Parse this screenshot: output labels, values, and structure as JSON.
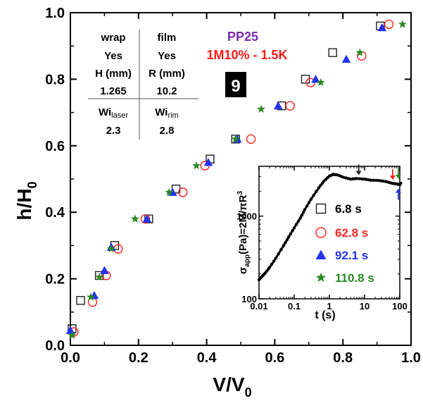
{
  "chart_data": {
    "type": "scatter",
    "xlabel": "V/V",
    "xlabel_sub": "0",
    "ylabel": "h/H",
    "ylabel_sub": "0",
    "xlim": [
      0,
      1.0
    ],
    "ylim": [
      0,
      1.0
    ],
    "xticks": [
      "0.0",
      "0.2",
      "0.4",
      "0.6",
      "0.8",
      "1.0"
    ],
    "yticks": [
      "0.0",
      "0.2",
      "0.4",
      "0.6",
      "0.8",
      "1.0"
    ],
    "series": [
      {
        "name": "6.8 s",
        "marker": "square",
        "color": "#222222",
        "x": [
          0.005,
          0.03,
          0.085,
          0.13,
          0.23,
          0.31,
          0.41,
          0.485,
          0.62,
          0.69,
          0.77,
          0.91
        ],
        "y": [
          0.05,
          0.135,
          0.21,
          0.3,
          0.38,
          0.47,
          0.56,
          0.62,
          0.72,
          0.8,
          0.88,
          0.96
        ]
      },
      {
        "name": "62.8 s",
        "marker": "circle",
        "color": "#ff2222",
        "x": [
          0.01,
          0.065,
          0.105,
          0.14,
          0.22,
          0.33,
          0.395,
          0.53,
          0.645,
          0.705,
          0.855,
          0.935
        ],
        "y": [
          0.04,
          0.13,
          0.21,
          0.29,
          0.38,
          0.46,
          0.54,
          0.62,
          0.72,
          0.79,
          0.87,
          0.965
        ]
      },
      {
        "name": "92.1 s",
        "marker": "triangle",
        "color": "#2233ee",
        "x": [
          0.0,
          0.07,
          0.1,
          0.12,
          0.225,
          0.3,
          0.405,
          0.49,
          0.61,
          0.72,
          0.81,
          0.915
        ],
        "y": [
          0.045,
          0.15,
          0.225,
          0.295,
          0.38,
          0.46,
          0.55,
          0.62,
          0.72,
          0.8,
          0.86,
          0.955
        ]
      },
      {
        "name": "110.8 s",
        "marker": "star",
        "color": "#2a8a22",
        "x": [
          0.005,
          0.06,
          0.085,
          0.12,
          0.19,
          0.29,
          0.37,
          0.485,
          0.56,
          0.735,
          0.85,
          0.975
        ],
        "y": [
          0.03,
          0.145,
          0.205,
          0.29,
          0.38,
          0.46,
          0.54,
          0.62,
          0.71,
          0.79,
          0.88,
          0.965
        ]
      }
    ],
    "inset": {
      "type": "line",
      "xlabel": "t (s)",
      "ylabel": "σ",
      "ylabel_sub": "app",
      "ylabel_rest": "(Pa)=2M/πR",
      "ylabel_sup": "3",
      "xscale": "log",
      "yscale": "log",
      "xlim": [
        0.01,
        100
      ],
      "ylim": [
        100,
        4000
      ],
      "xticks": [
        "0.01",
        "0.1",
        "1",
        "10",
        "100"
      ],
      "yticks": [
        "100",
        "1000"
      ],
      "curve": {
        "t": [
          0.01,
          0.012,
          0.015,
          0.02,
          0.03,
          0.05,
          0.07,
          0.1,
          0.15,
          0.2,
          0.3,
          0.5,
          0.7,
          1.0,
          1.3,
          1.7,
          2.5,
          4,
          6,
          10,
          15,
          25,
          40,
          60,
          80,
          100,
          110
        ],
        "s": [
          170,
          185,
          205,
          240,
          310,
          440,
          560,
          720,
          950,
          1200,
          1600,
          2200,
          2650,
          3050,
          3200,
          3150,
          2950,
          2800,
          2850,
          2800,
          2720,
          2700,
          2620,
          2500,
          2450,
          2400,
          2550
        ]
      },
      "arrows": [
        {
          "t": 6.8,
          "color": "#222222",
          "dir": "down"
        },
        {
          "t": 62.8,
          "color": "#ff2222",
          "dir": "down"
        },
        {
          "t": 92.1,
          "color": "#2233ee",
          "dir": "up"
        },
        {
          "t": 110.8,
          "color": "#2a8a22",
          "dir": "down"
        }
      ],
      "legend_position": "center-right"
    }
  },
  "info_table": {
    "col1_header": "wrap",
    "col2_header": "film",
    "col1_value": "Yes",
    "col2_value": "Yes",
    "col1_param": "H (mm)",
    "col2_param": "R (mm)",
    "col1_param_value": "1.265",
    "col2_param_value": "10.2",
    "col1_wi": "Wi",
    "col1_wi_sub": "laser",
    "col2_wi": "Wi",
    "col2_wi_sub": "rim",
    "col1_wi_value": "2.3",
    "col2_wi_value": "2.8"
  },
  "annotations": {
    "sample": "PP25",
    "sample_color": "#7a2ab0",
    "condition": "1M10% - 1.5K",
    "condition_color": "#ff1a1a",
    "badge": "9"
  }
}
